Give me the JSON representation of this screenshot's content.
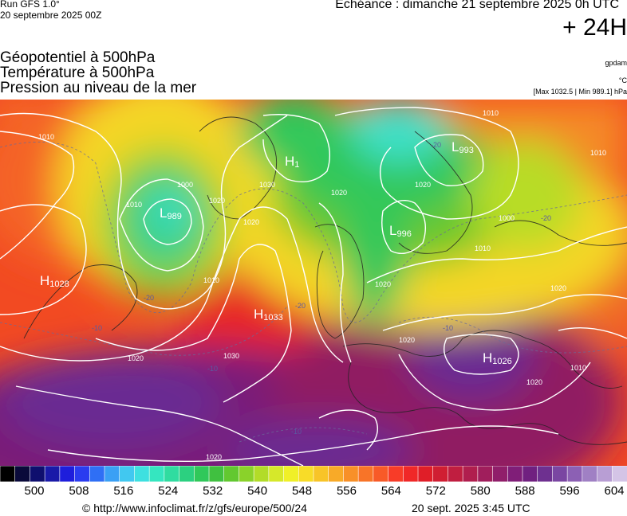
{
  "header": {
    "run": "Run GFS 1.0°",
    "run_date": "20 septembre 2025 00Z",
    "echeance": "Echéance : dimanche 21 septembre 2025 0h UTC",
    "lead_time": "+ 24H",
    "title_lines": [
      "Géopotentiel à 500hPa",
      "Température à 500hPa",
      "Pression au niveau de la mer"
    ],
    "unit_geopotential": "gpdam",
    "unit_temperature": "°C",
    "pressure_extremes": "[Max 1032.5 | Min 989.1] hPa"
  },
  "map": {
    "pressure_centers": [
      {
        "type": "H",
        "value": "1028"
      },
      {
        "type": "L",
        "value": "989"
      },
      {
        "type": "H",
        "value": "1"
      },
      {
        "type": "L",
        "value": "993"
      },
      {
        "type": "L",
        "value": "996"
      },
      {
        "type": "H",
        "value": "1033"
      },
      {
        "type": "H",
        "value": "1026"
      }
    ],
    "isobar_labels": [
      "1010",
      "1000",
      "1010",
      "1020",
      "1030",
      "1020",
      "1020",
      "1010",
      "1010",
      "1000",
      "1020",
      "1020",
      "1020",
      "1010",
      "1020",
      "1010",
      "1020",
      "1030",
      "1020",
      "1020",
      "1010"
    ],
    "temperature_labels": [
      "-20",
      "-20",
      "-10",
      "-10",
      "-10",
      "-20",
      "-10",
      "-20"
    ]
  },
  "legend": {
    "colors": [
      "#000000",
      "#0a0a3a",
      "#0f0f6e",
      "#1a1aa8",
      "#1e1edc",
      "#2a3cf0",
      "#2f6ff5",
      "#3aa0f5",
      "#41c8f0",
      "#3ee0e0",
      "#35e6c0",
      "#30dca0",
      "#2cd080",
      "#30c85a",
      "#40c040",
      "#62c830",
      "#8ad22a",
      "#b2dc28",
      "#d6e82a",
      "#f0f028",
      "#f8dc28",
      "#f8c428",
      "#f8aa28",
      "#f89028",
      "#f87428",
      "#f85a28",
      "#f83c28",
      "#f02828",
      "#e01e28",
      "#d01e32",
      "#c01e40",
      "#b01e4e",
      "#a01e5c",
      "#901e6a",
      "#801e78",
      "#702080",
      "#6e3090",
      "#7a46a2",
      "#8c60b4",
      "#a080c4",
      "#b89ed4",
      "#d4c4e6"
    ],
    "tick_values": [
      "500",
      "508",
      "516",
      "524",
      "532",
      "540",
      "548",
      "556",
      "564",
      "572",
      "580",
      "588",
      "596",
      "604"
    ]
  },
  "footer": {
    "credit": "© http://www.infoclimat.fr/z/gfs/europe/500/24",
    "timestamp": "20 sept. 2025  3:45 UTC"
  }
}
